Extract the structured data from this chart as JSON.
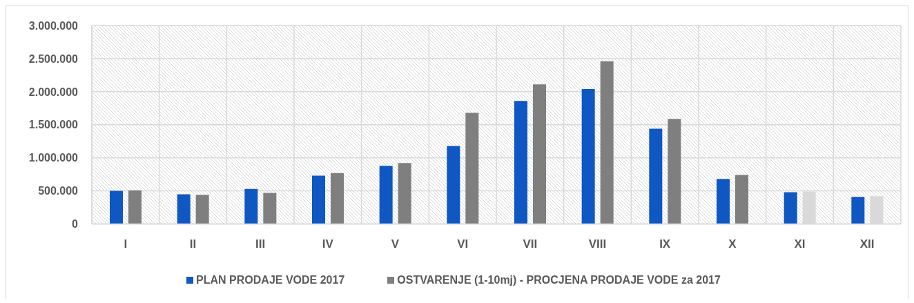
{
  "chart_data": {
    "type": "bar",
    "categories": [
      "I",
      "II",
      "III",
      "IV",
      "V",
      "VI",
      "VII",
      "VIII",
      "IX",
      "X",
      "XI",
      "XII"
    ],
    "series": [
      {
        "name": "PLAN PRODAJE VODE 2017",
        "color": "#0f57c2",
        "values": [
          500000,
          450000,
          530000,
          730000,
          880000,
          1180000,
          1860000,
          2040000,
          1440000,
          680000,
          480000,
          410000
        ]
      },
      {
        "name": "OSTVARENJE (1-10mj) - PROCJENA PRODAJE VODE za 2017",
        "color": "#7f7f7f",
        "colors": [
          "#7f7f7f",
          "#7f7f7f",
          "#7f7f7f",
          "#7f7f7f",
          "#7f7f7f",
          "#7f7f7f",
          "#7f7f7f",
          "#7f7f7f",
          "#7f7f7f",
          "#7f7f7f",
          "#d9d9d9",
          "#d9d9d9"
        ],
        "values": [
          510000,
          440000,
          470000,
          770000,
          920000,
          1680000,
          2110000,
          2460000,
          1590000,
          740000,
          490000,
          420000
        ]
      }
    ],
    "ylim": [
      0,
      3000000
    ],
    "yticks": [
      0,
      {
        "value": 500000,
        "label": "500.000"
      },
      {
        "value": 1000000,
        "label": "1.000.000"
      },
      {
        "value": 1500000,
        "label": "1.500.000"
      },
      {
        "value": 2000000,
        "label": "2.000.000"
      },
      {
        "value": 2500000,
        "label": "2.500.000"
      },
      {
        "value": 3000000,
        "label": "3.000.000"
      }
    ],
    "grid": true,
    "legend": "bottom"
  }
}
